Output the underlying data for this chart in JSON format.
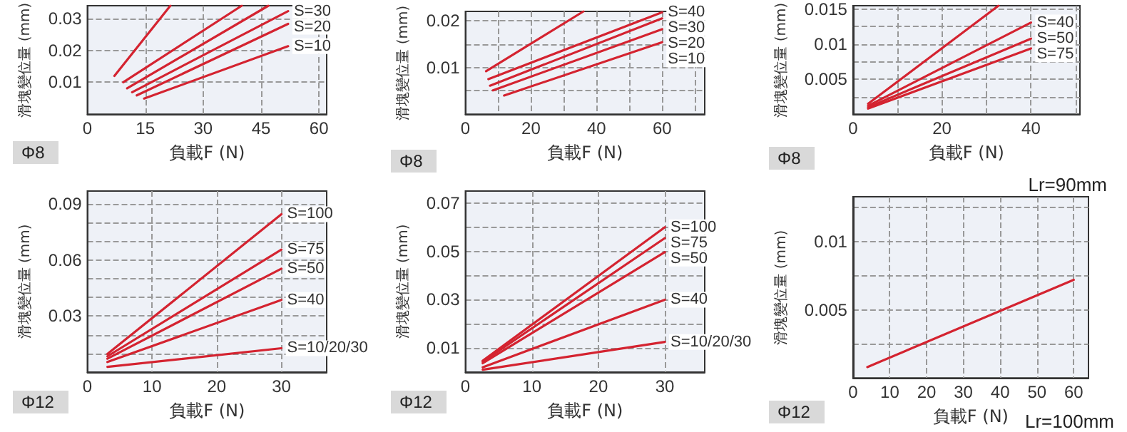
{
  "chart_data": [
    {
      "type": "line",
      "xlabel": "負載F (N)",
      "ylabel": "滑塊變位量 (mm)",
      "annotations": [
        "Φ8"
      ],
      "xlim": [
        0,
        62
      ],
      "xticks": [
        0,
        15,
        30,
        45,
        60
      ],
      "ylim": [
        0,
        0.034
      ],
      "yticks": [
        {
          "value": 0,
          "label": null
        },
        0.01,
        0.02,
        0.03
      ],
      "grid": true,
      "marker": "none",
      "line_style": "solid",
      "series": [
        {
          "color": "#d42330",
          "x": [
            7,
            21.5
          ],
          "values": [
            0.012,
            0.034
          ]
        },
        {
          "color": "#d42330",
          "x": [
            9.3,
            40
          ],
          "values": [
            0.01,
            0.034
          ]
        },
        {
          "color": "#d42330",
          "x": [
            10.3,
            46.9
          ],
          "values": [
            0.0081,
            0.034
          ]
        },
        {
          "name": "S=30",
          "color": "#d42330",
          "x": [
            11.6,
            52
          ],
          "values": [
            0.0069,
            0.0323
          ]
        },
        {
          "name": "S=20",
          "color": "#d42330",
          "x": [
            12.8,
            52
          ],
          "values": [
            0.0059,
            0.0283
          ]
        },
        {
          "name": "S=10",
          "color": "#d42330",
          "x": [
            14.7,
            52
          ],
          "values": [
            0.0049,
            0.0213
          ]
        }
      ]
    },
    {
      "type": "line",
      "xlabel": "負載F (N)",
      "ylabel": "滑塊變位量 (mm)",
      "annotations": [
        "Φ8"
      ],
      "xlim": [
        0,
        73
      ],
      "xticks": [
        0,
        {
          "value": 10,
          "label": null
        },
        20,
        {
          "value": 30,
          "label": null
        },
        40,
        {
          "value": 50,
          "label": null
        },
        60,
        {
          "value": 70,
          "label": null
        }
      ],
      "ylim": [
        0,
        0.022
      ],
      "yticks": [
        {
          "value": 0,
          "label": null
        },
        {
          "value": 0.005,
          "label": null
        },
        0.01,
        {
          "value": 0.015,
          "label": null
        },
        0.02
      ],
      "grid": true,
      "marker": "none",
      "line_style": "solid",
      "series": [
        {
          "color": "#d42330",
          "x": [
            6.3,
            36
          ],
          "values": [
            0.0092,
            0.022
          ]
        },
        {
          "name": "S=40",
          "color": "#d42330",
          "x": [
            7,
            60
          ],
          "values": [
            0.0075,
            0.0218
          ]
        },
        {
          "name": "S=30",
          "color": "#d42330",
          "x": [
            7.5,
            60
          ],
          "values": [
            0.0061,
            0.0205
          ]
        },
        {
          "name": "S=20",
          "color": "#d42330",
          "x": [
            8.4,
            60
          ],
          "values": [
            0.0051,
            0.0182
          ]
        },
        {
          "name": "S=10",
          "color": "#d42330",
          "x": [
            11.8,
            60
          ],
          "values": [
            0.004,
            0.0154
          ]
        }
      ]
    },
    {
      "type": "line",
      "xlabel": "負載F (N)",
      "ylabel": "滑塊變位量 (mm)",
      "annotations": [
        "Φ8"
      ],
      "xlim": [
        0,
        51
      ],
      "xticks": [
        0,
        {
          "value": 10,
          "label": null
        },
        20,
        {
          "value": 30,
          "label": null
        },
        40,
        {
          "value": 50,
          "label": null
        }
      ],
      "ylim": [
        0,
        0.0155
      ],
      "yticks": [
        {
          "value": 0,
          "label": null
        },
        {
          "value": 0.0025,
          "label": null
        },
        0.005,
        {
          "value": 0.0075,
          "label": null
        },
        0.01,
        {
          "value": 0.0125,
          "label": null
        },
        0.015
      ],
      "grid": true,
      "marker": "none",
      "line_style": "solid",
      "series": [
        {
          "color": "#d42330",
          "x": [
            3.4,
            32.7
          ],
          "values": [
            0.0015,
            0.0155
          ]
        },
        {
          "name": "S=40",
          "color": "#d42330",
          "x": [
            3.4,
            40
          ],
          "values": [
            0.0012,
            0.0131
          ]
        },
        {
          "name": "S=50",
          "color": "#d42330",
          "x": [
            3.4,
            40
          ],
          "values": [
            0.001,
            0.0108
          ]
        },
        {
          "name": "S=75",
          "color": "#d42330",
          "x": [
            3.4,
            40
          ],
          "values": [
            0.0008,
            0.0094
          ]
        }
      ]
    },
    {
      "type": "line",
      "xlabel": "負載F (N)",
      "ylabel": "滑塊變位量 (mm)",
      "annotations": [
        "Φ12"
      ],
      "xlim": [
        0,
        37
      ],
      "xticks": [
        0,
        10,
        20,
        30
      ],
      "ylim": [
        0,
        0.097
      ],
      "yticks": [
        {
          "value": 0,
          "label": null
        },
        {
          "value": 0.01,
          "label": null
        },
        {
          "value": 0.02,
          "label": null
        },
        0.03,
        {
          "value": 0.04,
          "label": null
        },
        {
          "value": 0.05,
          "label": null
        },
        0.06,
        {
          "value": 0.07,
          "label": null
        },
        {
          "value": 0.08,
          "label": null
        },
        0.09
      ],
      "grid": true,
      "marker": "none",
      "line_style": "solid",
      "series": [
        {
          "name": "S=100",
          "color": "#d42330",
          "x": [
            3.1,
            30
          ],
          "values": [
            0.0097,
            0.0846
          ]
        },
        {
          "name": "S=75",
          "color": "#d42330",
          "x": [
            3.1,
            30
          ],
          "values": [
            0.0085,
            0.0656
          ]
        },
        {
          "name": "S=50",
          "color": "#d42330",
          "x": [
            3.1,
            30
          ],
          "values": [
            0.0072,
            0.0554
          ]
        },
        {
          "name": "S=40",
          "color": "#d42330",
          "x": [
            3.1,
            30
          ],
          "values": [
            0.0054,
            0.0387
          ]
        },
        {
          "name": "S=10/20/30",
          "color": "#d42330",
          "x": [
            3.1,
            30
          ],
          "values": [
            0.0028,
            0.0128
          ]
        }
      ]
    },
    {
      "type": "line",
      "xlabel": "負載F (N)",
      "ylabel": "滑塊變位量 (mm)",
      "annotations": [
        "Φ12"
      ],
      "xlim": [
        0,
        36
      ],
      "xticks": [
        0,
        10,
        20,
        30
      ],
      "ylim": [
        0,
        0.075
      ],
      "yticks": [
        {
          "value": 0,
          "label": null
        },
        0.01,
        {
          "value": 0.02,
          "label": null
        },
        0.03,
        {
          "value": 0.04,
          "label": null
        },
        0.05,
        {
          "value": 0.06,
          "label": null
        },
        0.07
      ],
      "grid": true,
      "marker": "none",
      "line_style": "solid",
      "series": [
        {
          "name": "S=100",
          "color": "#d42330",
          "x": [
            2.6,
            30
          ],
          "values": [
            0.0047,
            0.06
          ]
        },
        {
          "name": "S=75",
          "color": "#d42330",
          "x": [
            2.6,
            30
          ],
          "values": [
            0.0043,
            0.0555
          ]
        },
        {
          "name": "S=50",
          "color": "#d42330",
          "x": [
            2.6,
            30
          ],
          "values": [
            0.0037,
            0.0497
          ]
        },
        {
          "name": "S=40",
          "color": "#d42330",
          "x": [
            2.6,
            30
          ],
          "values": [
            0.002,
            0.03
          ]
        },
        {
          "name": "S=10/20/30",
          "color": "#d42330",
          "x": [
            2.6,
            30
          ],
          "values": [
            0.001,
            0.0125
          ]
        }
      ]
    },
    {
      "type": "line",
      "subtitle": "Lr=90mm",
      "xlabel": "負載F (N)",
      "ylabel": "滑塊變位量 (mm)",
      "annotations": [
        "Φ12",
        "Lr=100mm"
      ],
      "xlim": [
        0,
        64
      ],
      "xticks": [
        0,
        10,
        20,
        30,
        40,
        50,
        60
      ],
      "ylim": [
        0,
        0.0133
      ],
      "yticks": [
        {
          "value": 0,
          "label": null
        },
        {
          "value": 0.0025,
          "label": null
        },
        0.005,
        {
          "value": 0.0075,
          "label": null
        },
        0.01,
        {
          "value": 0.0125,
          "label": null
        }
      ],
      "grid": true,
      "marker": "none",
      "line_style": "solid",
      "series": [
        {
          "color": "#d42330",
          "x": [
            3.9,
            60
          ],
          "values": [
            0.0008,
            0.0072
          ]
        }
      ]
    }
  ]
}
